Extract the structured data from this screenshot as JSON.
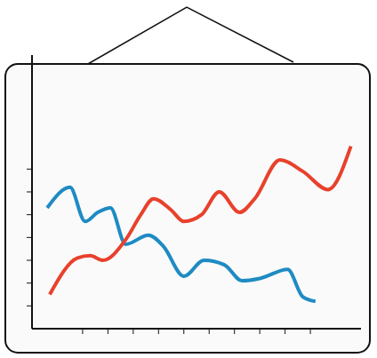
{
  "chart_data": {
    "type": "line",
    "xlim": [
      0,
      13
    ],
    "xticks": [
      2,
      3,
      4,
      5,
      6,
      7,
      8,
      9,
      10,
      11
    ],
    "ylim": [
      0,
      12
    ],
    "yticks": [
      1,
      2,
      3,
      4,
      5,
      6,
      7
    ],
    "tick_labels": false,
    "grid": false,
    "series": [
      {
        "color": "#1e8bc3",
        "x": [
          0.6,
          1.5,
          2.1,
          2.6,
          3.1,
          3.7,
          4.6,
          5.2,
          6.0,
          6.8,
          7.6,
          8.3,
          9.0,
          10.1,
          10.7,
          11.2
        ],
        "values": [
          5.3,
          6.2,
          4.7,
          5.1,
          5.3,
          3.7,
          4.1,
          3.6,
          2.3,
          3.0,
          2.8,
          2.1,
          2.2,
          2.6,
          1.4,
          1.2
        ]
      },
      {
        "color": "#e8412c",
        "x": [
          0.7,
          1.8,
          2.3,
          2.8,
          3.7,
          4.3,
          4.8,
          5.5,
          6.0,
          6.7,
          7.4,
          8.2,
          8.8,
          9.8,
          10.7,
          11.7,
          12.6
        ],
        "values": [
          1.5,
          3.1,
          3.2,
          3.0,
          3.9,
          5.0,
          5.7,
          5.2,
          4.7,
          5.0,
          6.0,
          5.1,
          5.7,
          7.4,
          6.9,
          6.1,
          8.0
        ]
      }
    ]
  }
}
